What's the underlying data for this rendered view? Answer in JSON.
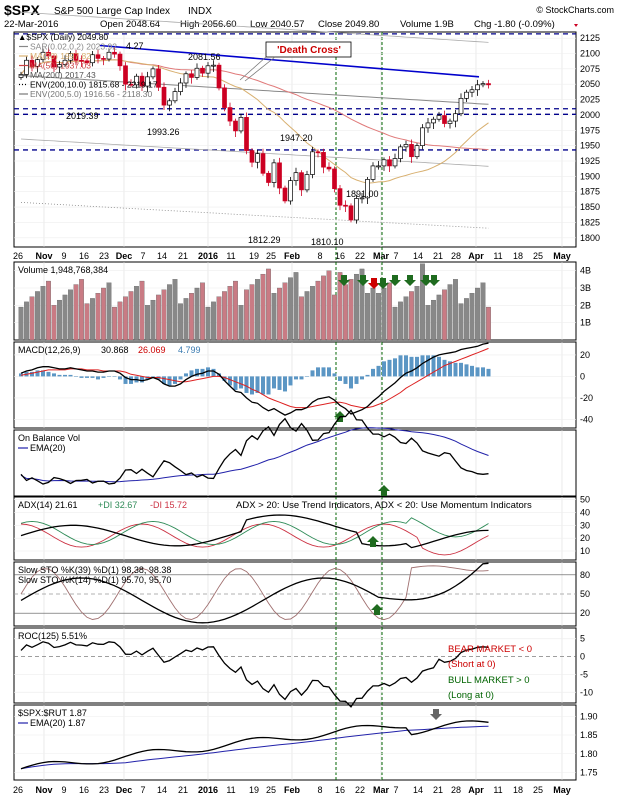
{
  "header": {
    "symbol": "$SPX",
    "name": "S&P 500 Large Cap Index",
    "exchange": "INDX",
    "watermark": "© StockCharts.com",
    "date": "22-Mar-2016",
    "open": "Open 2048.64",
    "high": "High 2056.60",
    "low": "Low 2040.57",
    "close": "Close 2049.80",
    "volume": "Volume 1.9B",
    "chg": "Chg -1.80 (-0.09%)"
  },
  "colors": {
    "up": "#000000",
    "down": "#cc0022",
    "trendline": "#0000cc",
    "dashedLevel": "#00008b",
    "signalLine": "#006400",
    "ma20": "#d8b070",
    "ma50": "#e07a7a",
    "ma200": "#888888",
    "arrow": "#1f6b1f",
    "redArrow": "#cc0000",
    "grayArrow": "#666666",
    "volumeUp": "#888888",
    "volumeDown": "#c97b84",
    "histogram": "#5b96c4",
    "macdSignal": "#dd2222",
    "emaBlue": "#2222aa"
  },
  "chart_data": [
    {
      "type": "candlestick",
      "panel": "price",
      "legend": [
        "▲$SPX (Daily) 2049.80",
        "SAR(0.02,0.2) 2023.92",
        "MA(20) 1997.82",
        "MA(50) 1937.03",
        "MA(200) 2017.43",
        "ENV(200,10.0) 1815.68 - 2219.17",
        "ENV(200,5.0) 1916.56 - 2118.30"
      ],
      "annotations": [
        "'Death Cross'",
        "2081.56",
        "2019.39",
        "1993.26",
        "1947.20",
        "1891.00",
        "1812.29",
        "1810.10",
        "4.27"
      ],
      "y_ticks": [
        1800,
        1825,
        1850,
        1875,
        1900,
        1925,
        1950,
        1975,
        2000,
        2025,
        2050,
        2075,
        2100,
        2125
      ],
      "ylim": [
        1785,
        2135
      ],
      "x_ticks": [
        "26",
        "Nov",
        "9",
        "16",
        "23",
        "Dec",
        "7",
        "14",
        "21",
        "2016",
        "11",
        "19",
        "25",
        "Feb",
        "8",
        "16",
        "22",
        "Mar",
        "7",
        "14",
        "21",
        "28",
        "Apr",
        "11",
        "18",
        "25",
        "May"
      ],
      "horizontal_levels": [
        2132,
        2010,
        2001,
        1943
      ],
      "close_series": [
        2066,
        2089,
        2079,
        2090,
        2102,
        2096,
        2078,
        2082,
        2089,
        2100,
        2089,
        2088,
        2085,
        2098,
        2092,
        2091,
        2102,
        2099,
        2080,
        2050,
        2049,
        2063,
        2047,
        2062,
        2075,
        2045,
        2016,
        2023,
        2038,
        2052,
        2067,
        2061,
        2076,
        2068,
        2080,
        2081,
        2044,
        2012,
        1990,
        1974,
        1996,
        1942,
        1923,
        1937,
        1905,
        1890,
        1922,
        1881,
        1860,
        1893,
        1906,
        1878,
        1903,
        1940,
        1939,
        1915,
        1912,
        1880,
        1853,
        1852,
        1829,
        1864,
        1865,
        1895,
        1917,
        1917,
        1927,
        1917,
        1929,
        1948,
        1952,
        1932,
        1950,
        1979,
        1987,
        1993,
        1999,
        1986,
        1990,
        2002,
        2027,
        2037,
        2041,
        2049,
        2051,
        2049
      ]
    },
    {
      "type": "bar",
      "panel": "volume",
      "legend": [
        "Volume 1,948,768,384"
      ],
      "y_ticks": [
        "4B",
        "3B",
        "2B",
        "1B"
      ],
      "ylim": [
        0,
        4.5
      ]
    },
    {
      "type": "line",
      "panel": "macd",
      "legend": [
        "MACD(12,26,9)",
        "30.868",
        "26.069",
        "4.799"
      ],
      "y_ticks": [
        20,
        0,
        -20,
        -40
      ],
      "ylim": [
        -48,
        32
      ],
      "series": [
        {
          "name": "MACD(12,26,9)",
          "values": [
            3,
            5,
            6,
            8,
            9,
            9,
            8,
            7,
            7,
            8,
            7,
            6,
            5,
            5,
            4,
            4,
            5,
            5,
            3,
            -1,
            -3,
            -3,
            -4,
            -3,
            -1,
            -3,
            -7,
            -9,
            -9,
            -7,
            -3,
            0,
            2,
            3,
            5,
            5,
            2,
            -4,
            -9,
            -14,
            -15,
            -20,
            -24,
            -25,
            -29,
            -32,
            -30,
            -33,
            -36,
            -34,
            -31,
            -31,
            -29,
            -24,
            -21,
            -20,
            -19,
            -22,
            -27,
            -30,
            -35,
            -33,
            -31,
            -28,
            -23,
            -19,
            -14,
            -10,
            -6,
            -1,
            3,
            5,
            8,
            12,
            15,
            18,
            20,
            21,
            22,
            23,
            25,
            26,
            27,
            28,
            30,
            31
          ]
        },
        {
          "name": "Signal",
          "values": [
            1,
            2,
            3,
            4,
            5,
            6,
            6,
            6,
            6,
            7,
            7,
            7,
            6,
            6,
            6,
            5,
            5,
            5,
            5,
            4,
            2,
            1,
            0,
            -1,
            -1,
            -1,
            -2,
            -3,
            -4,
            -5,
            -5,
            -4,
            -3,
            -2,
            -1,
            0,
            0,
            -1,
            -3,
            -5,
            -7,
            -9,
            -12,
            -14,
            -17,
            -20,
            -22,
            -24,
            -26,
            -28,
            -29,
            -29,
            -29,
            -28,
            -27,
            -26,
            -25,
            -24,
            -24,
            -25,
            -27,
            -28,
            -29,
            -29,
            -28,
            -26,
            -24,
            -21,
            -18,
            -15,
            -11,
            -8,
            -5,
            -2,
            1,
            4,
            7,
            10,
            12,
            14,
            16,
            18,
            20,
            22,
            24,
            26
          ]
        }
      ]
    },
    {
      "type": "line",
      "panel": "obv",
      "legend": [
        "On Balance Vol",
        "EMA(20)"
      ]
    },
    {
      "type": "line",
      "panel": "adx",
      "legend": [
        "ADX(14) 21.61",
        "+DI 32.67",
        "-DI 15.72",
        "ADX > 20: Use Trend Indicators, ADX < 20: Use Momentum Indicators"
      ],
      "y_ticks": [
        50,
        40,
        30,
        20,
        10
      ],
      "ylim": [
        3,
        52
      ]
    },
    {
      "type": "line",
      "panel": "stochastic",
      "legend": [
        "Slow STO %K(39) %D(1) 98.38, 98.38",
        "Slow STO %K(14) %D(1) 95.70, 95.70"
      ],
      "y_ticks": [
        80,
        50,
        20
      ],
      "ylim": [
        0,
        100
      ]
    },
    {
      "type": "line",
      "panel": "roc",
      "legend": [
        "ROC(125) 5.51%"
      ],
      "annotations": [
        "BEAR MARKET < 0",
        "(Short at 0)",
        "BULL MARKET > 0",
        "(Long at 0)"
      ],
      "y_ticks": [
        5,
        0,
        -5,
        -10
      ],
      "ylim": [
        -13,
        8
      ]
    },
    {
      "type": "line",
      "panel": "ratio",
      "legend": [
        "$SPX:$RUT 1.87",
        "EMA(20) 1.87"
      ],
      "y_ticks": [
        1.9,
        1.85,
        1.8,
        1.75
      ],
      "ylim": [
        1.73,
        1.93
      ]
    }
  ]
}
